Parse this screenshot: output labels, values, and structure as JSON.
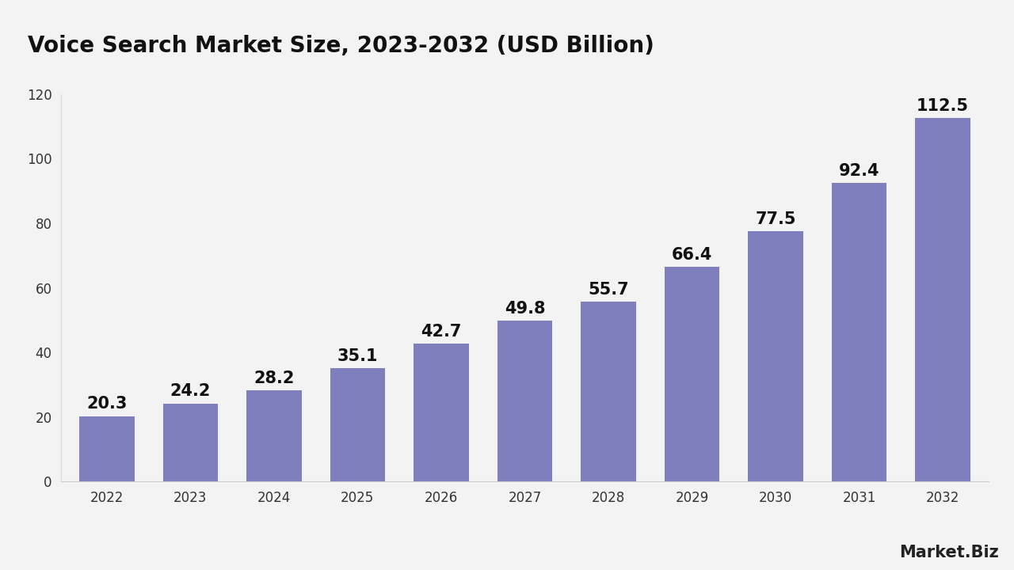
{
  "chart_data": {
    "type": "bar",
    "title": "Voice Search Market Size, 2023-2032 (USD Billion)",
    "categories": [
      "2022",
      "2023",
      "2024",
      "2025",
      "2026",
      "2027",
      "2028",
      "2029",
      "2030",
      "2031",
      "2032"
    ],
    "values": [
      20.3,
      24.2,
      28.2,
      35.1,
      42.7,
      49.8,
      55.7,
      66.4,
      77.5,
      92.4,
      112.5
    ],
    "color": "#7f7fbd",
    "ylim": [
      0,
      120
    ],
    "yticks": [
      0,
      20,
      40,
      60,
      80,
      100,
      120
    ],
    "grid": false,
    "data_labels": true,
    "annotations": [
      "Market.Biz"
    ]
  }
}
